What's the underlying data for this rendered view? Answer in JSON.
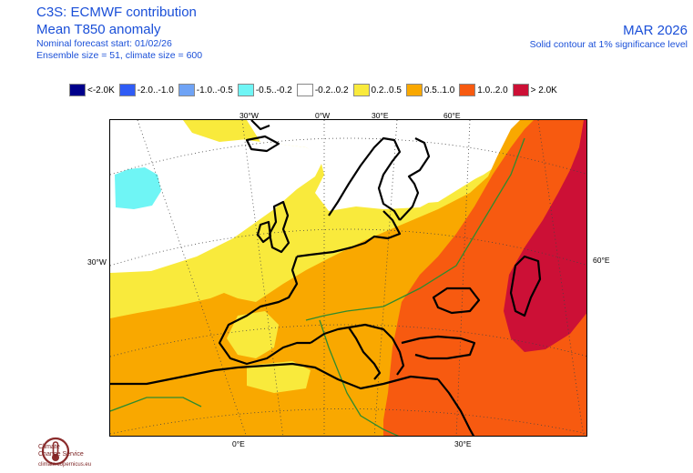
{
  "header": {
    "title_line1": "C3S: ECMWF contribution",
    "title_line2": "Mean T850 anomaly",
    "meta_line1": "Nominal forecast start: 01/02/26",
    "meta_line2": "Ensemble size = 51, climate size = 600",
    "date": "MAR 2026",
    "contour_note": "Solid contour at 1% significance level"
  },
  "legend": [
    {
      "label": "<-2.0K",
      "color": "#00008b"
    },
    {
      "label": "-2.0..-1.0",
      "color": "#2f5cf5"
    },
    {
      "label": "-1.0..-0.5",
      "color": "#6fa3f5"
    },
    {
      "label": "-0.5..-0.2",
      "color": "#6ff5f5"
    },
    {
      "label": "-0.2..0.2",
      "color": "#ffffff"
    },
    {
      "label": "0.2..0.5",
      "color": "#f9ea3c"
    },
    {
      "label": "0.5..1.0",
      "color": "#f9a800"
    },
    {
      "label": "1.0..2.0",
      "color": "#f75a10"
    },
    {
      "label": "> 2.0K",
      "color": "#cc1036"
    }
  ],
  "coords": {
    "top_30w": "30°W",
    "top_0w": "0°W",
    "top_30e": "30°E",
    "top_60e": "60°E",
    "left_30w": "30°W",
    "right_60e": "60°E",
    "bottom_0e": "0°E",
    "bottom_30e": "30°E"
  },
  "logo": {
    "line1": "Climate",
    "line2": "Change Service",
    "url": "climate.copernicus.eu"
  }
}
